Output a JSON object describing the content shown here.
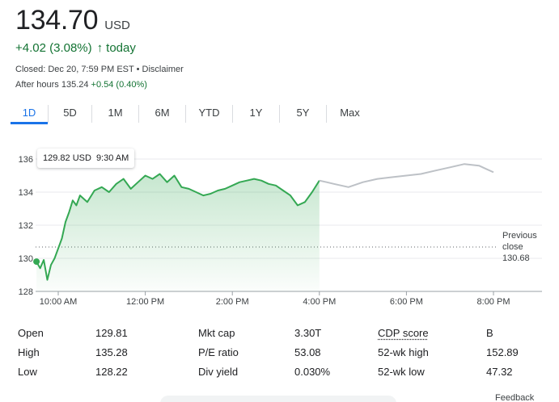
{
  "quote": {
    "price": "134.70",
    "currency": "USD",
    "change": "+4.02 (3.08%)",
    "change_arrow": "↑",
    "change_period": "today",
    "closed_line": "Closed: Dec 20, 7:59 PM EST • Disclaimer",
    "after_hours_prefix": "After hours 135.24",
    "after_hours_change": "+0.54 (0.40%)"
  },
  "range_tabs": [
    {
      "label": "1D",
      "active": true
    },
    {
      "label": "5D"
    },
    {
      "label": "1M"
    },
    {
      "label": "6M"
    },
    {
      "label": "YTD"
    },
    {
      "label": "1Y"
    },
    {
      "label": "5Y"
    },
    {
      "label": "Max"
    }
  ],
  "tooltip": {
    "price": "129.82 USD",
    "time": "9:30 AM"
  },
  "colors": {
    "up": "#137333",
    "line": "#34a853",
    "after_hours_line": "#bdc1c6",
    "accent": "#1a73e8"
  },
  "chart_data": {
    "type": "line",
    "ylim": [
      128,
      136
    ],
    "xlim": [
      "09:30",
      "20:00"
    ],
    "yticks": [
      "136",
      "134",
      "132",
      "130",
      "128"
    ],
    "xticks": [
      "10:00 AM",
      "12:00 PM",
      "2:00 PM",
      "4:00 PM",
      "6:00 PM",
      "8:00 PM"
    ],
    "xtick_values": [
      "10:00",
      "12:00",
      "14:00",
      "16:00",
      "18:00",
      "20:00"
    ],
    "previous_close": {
      "label_line1": "Previous",
      "label_line2": "close",
      "value": "130.68"
    },
    "series": [
      {
        "session": "regular",
        "x": [
          "09:30",
          "09:35",
          "09:40",
          "09:45",
          "09:50",
          "09:55",
          "10:00",
          "10:05",
          "10:10",
          "10:15",
          "10:20",
          "10:25",
          "10:30",
          "10:40",
          "10:50",
          "11:00",
          "11:10",
          "11:20",
          "11:30",
          "11:40",
          "11:50",
          "12:00",
          "12:10",
          "12:20",
          "12:30",
          "12:40",
          "12:50",
          "13:00",
          "13:10",
          "13:20",
          "13:30",
          "13:40",
          "13:50",
          "14:00",
          "14:10",
          "14:20",
          "14:30",
          "14:40",
          "14:50",
          "15:00",
          "15:10",
          "15:20",
          "15:30",
          "15:40",
          "15:50",
          "16:00"
        ],
        "values": [
          129.8,
          129.4,
          129.9,
          128.7,
          129.6,
          130.0,
          130.6,
          131.2,
          132.2,
          132.8,
          133.5,
          133.2,
          133.8,
          133.4,
          134.1,
          134.3,
          134.0,
          134.5,
          134.8,
          134.2,
          134.6,
          135.0,
          134.8,
          135.1,
          134.6,
          135.0,
          134.3,
          134.2,
          134.0,
          133.8,
          133.9,
          134.1,
          134.2,
          134.4,
          134.6,
          134.7,
          134.8,
          134.7,
          134.5,
          134.4,
          134.1,
          133.8,
          133.2,
          133.4,
          134.0,
          134.7
        ]
      },
      {
        "session": "after_hours",
        "x": [
          "16:00",
          "16:10",
          "16:20",
          "16:40",
          "17:00",
          "17:20",
          "17:40",
          "18:00",
          "18:20",
          "18:40",
          "19:00",
          "19:20",
          "19:40",
          "19:50",
          "20:00"
        ],
        "values": [
          134.7,
          134.6,
          134.5,
          134.3,
          134.6,
          134.8,
          134.9,
          135.0,
          135.1,
          135.3,
          135.5,
          135.7,
          135.6,
          135.4,
          135.2
        ]
      }
    ]
  },
  "stats": [
    [
      {
        "label": "Open",
        "value": "129.81"
      },
      {
        "label": "Mkt cap",
        "value": "3.30T"
      },
      {
        "label": "CDP score",
        "value": "B"
      }
    ],
    [
      {
        "label": "High",
        "value": "135.28"
      },
      {
        "label": "P/E ratio",
        "value": "53.08"
      },
      {
        "label": "52-wk high",
        "value": "152.89"
      }
    ],
    [
      {
        "label": "Low",
        "value": "128.22"
      },
      {
        "label": "Div yield",
        "value": "0.030%"
      },
      {
        "label": "52-wk low",
        "value": "47.32"
      }
    ]
  ],
  "footer": {
    "feedback": "Feedback"
  }
}
